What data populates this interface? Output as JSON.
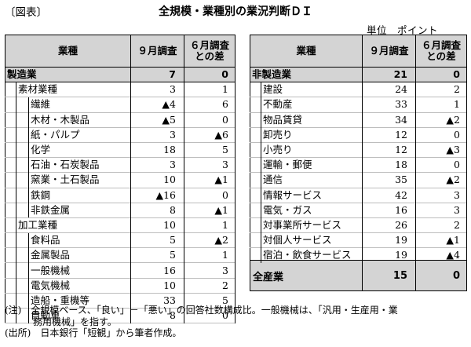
{
  "figure": {
    "label": "〔図表〕",
    "title": "全規模・業種別の業況判断ＤＩ",
    "unit": "単位　ポイント"
  },
  "left_table": {
    "headers": {
      "industry": "業種",
      "sept": "９月調査",
      "diff_line1": "６月調査",
      "diff_line2": "との差"
    },
    "section": {
      "label": "製造業",
      "sept": "7",
      "diff": "0"
    },
    "rows": [
      {
        "label": "素材業種",
        "level": 1,
        "sept": "3",
        "diff": "1"
      },
      {
        "label": "繊維",
        "level": 2,
        "sept": "▲4",
        "diff": "6"
      },
      {
        "label": "木材・木製品",
        "level": 2,
        "sept": "▲5",
        "diff": "0"
      },
      {
        "label": "紙・パルプ",
        "level": 2,
        "sept": "3",
        "diff": "▲6"
      },
      {
        "label": "化学",
        "level": 2,
        "sept": "18",
        "diff": "5"
      },
      {
        "label": "石油・石炭製品",
        "level": 2,
        "sept": "3",
        "diff": "3"
      },
      {
        "label": "窯業・土石製品",
        "level": 2,
        "sept": "10",
        "diff": "▲1"
      },
      {
        "label": "鉄鋼",
        "level": 2,
        "sept": "▲16",
        "diff": "0"
      },
      {
        "label": "非鉄金属",
        "level": 2,
        "sept": "8",
        "diff": "▲1"
      },
      {
        "label": "加工業種",
        "level": 1,
        "sept": "10",
        "diff": "1"
      },
      {
        "label": "食料品",
        "level": 2,
        "sept": "5",
        "diff": "▲2"
      },
      {
        "label": "金属製品",
        "level": 2,
        "sept": "5",
        "diff": "1"
      },
      {
        "label": "一般機械",
        "level": 2,
        "sept": "16",
        "diff": "3"
      },
      {
        "label": "電気機械",
        "level": 2,
        "sept": "10",
        "diff": "2"
      },
      {
        "label": "造船・重機等",
        "level": 2,
        "sept": "33",
        "diff": "5"
      },
      {
        "label": "自動車",
        "level": 2,
        "sept": "8",
        "diff": "0"
      }
    ]
  },
  "right_table": {
    "headers": {
      "industry": "業種",
      "sept": "９月調査",
      "diff_line1": "６月調査",
      "diff_line2": "との差"
    },
    "section": {
      "label": "非製造業",
      "sept": "21",
      "diff": "0"
    },
    "rows": [
      {
        "label": "建設",
        "sept": "24",
        "diff": "2"
      },
      {
        "label": "不動産",
        "sept": "33",
        "diff": "1"
      },
      {
        "label": "物品賃貸",
        "sept": "34",
        "diff": "▲2"
      },
      {
        "label": "卸売り",
        "sept": "12",
        "diff": "0"
      },
      {
        "label": "小売り",
        "sept": "12",
        "diff": "▲3"
      },
      {
        "label": "運輸・郵便",
        "sept": "18",
        "diff": "0"
      },
      {
        "label": "通信",
        "sept": "35",
        "diff": "▲2"
      },
      {
        "label": "情報サービス",
        "sept": "42",
        "diff": "3"
      },
      {
        "label": "電気・ガス",
        "sept": "16",
        "diff": "3"
      },
      {
        "label": "対事業所サービス",
        "sept": "26",
        "diff": "2"
      },
      {
        "label": "対個人サービス",
        "sept": "19",
        "diff": "▲1"
      },
      {
        "label": "宿泊・飲食サービス",
        "sept": "19",
        "diff": "▲4"
      }
    ],
    "total": {
      "label": "全産業",
      "sept": "15",
      "diff": "0"
    }
  },
  "notes": {
    "note_line1": "(注)　全規模ベース、「良い」－「悪い」の回答社数構成比。一般機械は、「汎用・生産用・業",
    "note_line2": "　　　務用機械」を指す。",
    "source": "(出所)　日本銀行「短観」から筆者作成。"
  }
}
